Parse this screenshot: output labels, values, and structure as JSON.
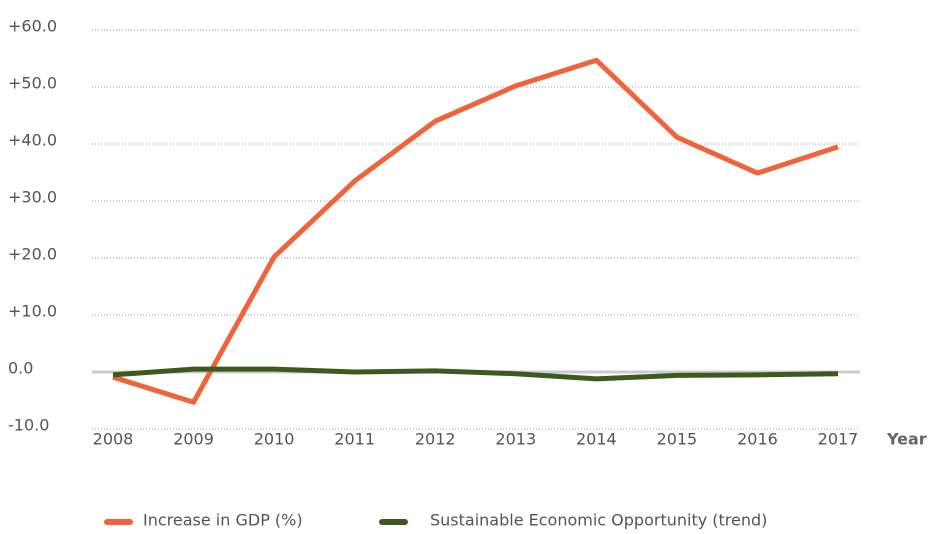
{
  "chart_data": {
    "type": "line",
    "x_label": "Year",
    "categories": [
      "2008",
      "2009",
      "2010",
      "2011",
      "2012",
      "2013",
      "2014",
      "2015",
      "2016",
      "2017"
    ],
    "series": [
      {
        "name": "Increase in GDP (%)",
        "color": "#f0643c",
        "values": [
          -0.9,
          -5.3,
          20.2,
          33.5,
          44.0,
          50.2,
          54.7,
          41.2,
          34.9,
          39.5
        ]
      },
      {
        "name": "Sustainable Economic Opportunity (trend)",
        "color": "#3d5a1e",
        "values": [
          -0.5,
          0.5,
          0.5,
          0.0,
          0.2,
          -0.3,
          -1.2,
          -0.6,
          -0.5,
          -0.3
        ]
      }
    ],
    "ylim": [
      -10,
      60
    ],
    "yticks": [
      {
        "value": -10,
        "label": "-10.0"
      },
      {
        "value": 0,
        "label": "0.0"
      },
      {
        "value": 10,
        "label": "+10.0"
      },
      {
        "value": 20,
        "label": "+20.0"
      },
      {
        "value": 30,
        "label": "+30.0"
      },
      {
        "value": 40,
        "label": "+40.0"
      },
      {
        "value": 50,
        "label": "+50.0"
      },
      {
        "value": 60,
        "label": "+60.0"
      }
    ],
    "grid": true
  }
}
